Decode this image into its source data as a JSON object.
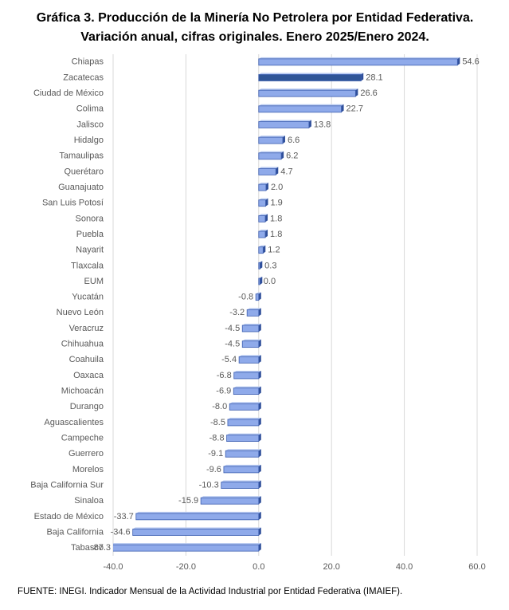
{
  "chart_data": {
    "type": "barh",
    "title": "Gráfica 3. Producción de la Minería No Petrolera por Entidad Federativa.",
    "subtitle": "Variación anual, cifras originales. Enero 2025/Enero 2024.",
    "categories": [
      "Chiapas",
      "Zacatecas",
      "Ciudad de México",
      "Colima",
      "Jalisco",
      "Hidalgo",
      "Tamaulipas",
      "Querétaro",
      "Guanajuato",
      "San Luis Potosí",
      "Sonora",
      "Puebla",
      "Nayarit",
      "Tlaxcala",
      "EUM",
      "Yucatán",
      "Nuevo León",
      "Veracruz",
      "Chihuahua",
      "Coahuila",
      "Oaxaca",
      "Michoacán",
      "Durango",
      "Aguascalientes",
      "Campeche",
      "Guerrero",
      "Morelos",
      "Baja California Sur",
      "Sinaloa",
      "Estado de México",
      "Baja California",
      "Tabasco"
    ],
    "values": [
      54.6,
      28.1,
      26.6,
      22.7,
      13.8,
      6.6,
      6.2,
      4.7,
      2.0,
      1.9,
      1.8,
      1.8,
      1.2,
      0.3,
      0.0,
      -0.8,
      -3.2,
      -4.5,
      -4.5,
      -5.4,
      -6.8,
      -6.9,
      -8.0,
      -8.5,
      -8.8,
      -9.1,
      -9.6,
      -10.3,
      -15.9,
      -33.7,
      -34.6,
      -87.3
    ],
    "value_labels": [
      "54.6",
      "28.1",
      "26.6",
      "22.7",
      "13.8",
      "6.6",
      "6.2",
      "4.7",
      "2.0",
      "1.9",
      "1.8",
      "1.8",
      "1.2",
      "0.3",
      "0.0",
      "-0.8",
      "-3.2",
      "-4.5",
      "-4.5",
      "-5.4",
      "-6.8",
      "-6.9",
      "-8.0",
      "-8.5",
      "-8.8",
      "-9.1",
      "-9.6",
      "-10.3",
      "-15.9",
      "-33.7",
      "-34.6",
      "-87.3"
    ],
    "colors": [
      "#8faaea",
      "#2f5597",
      "#8faaea",
      "#8faaea",
      "#8faaea",
      "#8faaea",
      "#8faaea",
      "#8faaea",
      "#8faaea",
      "#8faaea",
      "#8faaea",
      "#8faaea",
      "#8faaea",
      "#8faaea",
      "#8faaea",
      "#8faaea",
      "#8faaea",
      "#8faaea",
      "#8faaea",
      "#8faaea",
      "#8faaea",
      "#8faaea",
      "#8faaea",
      "#8faaea",
      "#8faaea",
      "#8faaea",
      "#8faaea",
      "#8faaea",
      "#8faaea",
      "#8faaea",
      "#8faaea",
      "#8faaea"
    ],
    "xlim": [
      -40,
      60
    ],
    "xticks": [
      {
        "value": -40,
        "label": "-40.0"
      },
      {
        "value": -20,
        "label": "-20.0"
      },
      {
        "value": 0,
        "label": "0.0"
      },
      {
        "value": 20,
        "label": "20.0"
      },
      {
        "value": 40,
        "label": "40.0"
      },
      {
        "value": 60,
        "label": "60.0"
      }
    ],
    "grid": true,
    "source": "FUENTE: INEGI. Indicador Mensual de la Actividad Industrial por Entidad Federativa (IMAIEF)."
  }
}
